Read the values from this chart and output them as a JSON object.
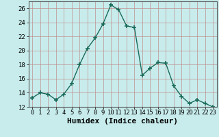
{
  "title": "",
  "xlabel": "Humidex (Indice chaleur)",
  "x": [
    0,
    1,
    2,
    3,
    4,
    5,
    6,
    7,
    8,
    9,
    10,
    11,
    12,
    13,
    14,
    15,
    16,
    17,
    18,
    19,
    20,
    21,
    22,
    23
  ],
  "y": [
    13.3,
    14.0,
    13.8,
    13.0,
    13.8,
    15.3,
    18.0,
    20.3,
    21.8,
    23.8,
    26.5,
    25.8,
    23.5,
    23.3,
    16.5,
    17.5,
    18.3,
    18.2,
    15.0,
    13.5,
    12.5,
    13.0,
    12.5,
    12.0
  ],
  "line_color": "#1a6b5a",
  "marker": "+",
  "marker_size": 4,
  "bg_color": "#c8ecec",
  "grid_color": "#c09090",
  "ylim": [
    12,
    27
  ],
  "xlim": [
    -0.5,
    23.5
  ],
  "yticks": [
    12,
    14,
    16,
    18,
    20,
    22,
    24,
    26
  ],
  "xticks": [
    0,
    1,
    2,
    3,
    4,
    5,
    6,
    7,
    8,
    9,
    10,
    11,
    12,
    13,
    14,
    15,
    16,
    17,
    18,
    19,
    20,
    21,
    22,
    23
  ],
  "tick_fontsize": 6.5,
  "xlabel_fontsize": 8,
  "linewidth": 1.0,
  "marker_linewidth": 1.2
}
